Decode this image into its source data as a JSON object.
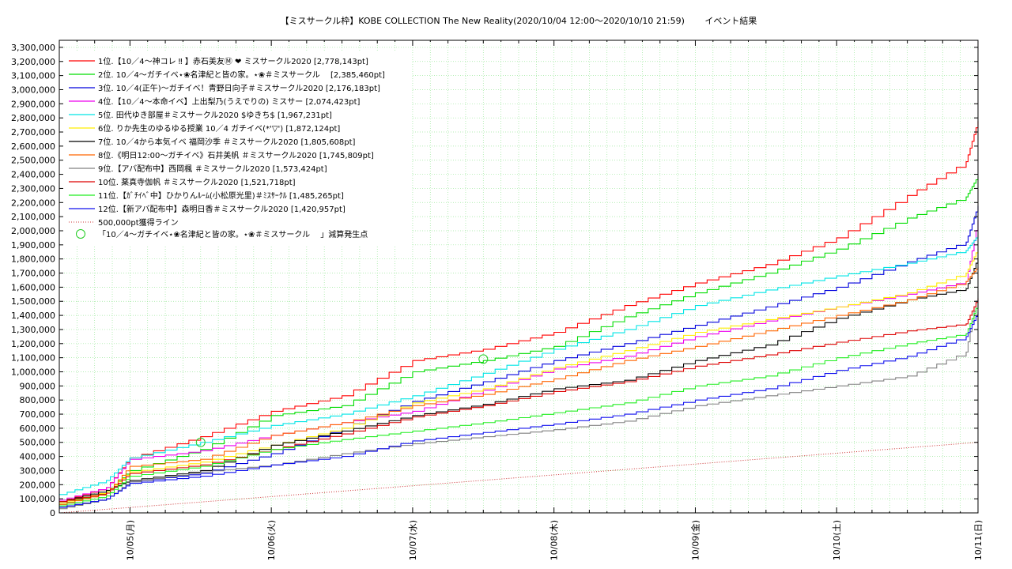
{
  "chart_data": {
    "type": "line",
    "title": "【ミスサークル枠】KOBE COLLECTION The New Reality(2020/10/04 12:00〜2020/10/10 21:59)　　 イベント結果",
    "xlabel": "",
    "ylabel": "",
    "x_ticks": [
      "10/05(月)",
      "10/06(火)",
      "10/07(水)",
      "10/08(木)",
      "10/09(金)",
      "10/10(土)",
      "10/11(日)"
    ],
    "xlim": [
      "2020-10-04 12:00",
      "2020-10-11 00:00"
    ],
    "ylim": [
      0,
      3350000
    ],
    "y_ticks": [
      "0",
      "100,000",
      "200,000",
      "300,000",
      "400,000",
      "500,000",
      "600,000",
      "700,000",
      "800,000",
      "900,000",
      "1,000,000",
      "1,100,000",
      "1,200,000",
      "1,300,000",
      "1,400,000",
      "1,500,000",
      "1,600,000",
      "1,700,000",
      "1,800,000",
      "1,900,000",
      "2,000,000",
      "2,100,000",
      "2,200,000",
      "2,300,000",
      "2,400,000",
      "2,500,000",
      "2,600,000",
      "2,700,000",
      "2,800,000",
      "2,900,000",
      "3,000,000",
      "3,100,000",
      "3,200,000",
      "3,300,000"
    ],
    "grid": true,
    "legend_position": "top-left",
    "series": [
      {
        "name": "1位.【10／4〜神コレ ‼ 】赤石美友Ⓜ ❤ ミスサークル2020 [2,778,143pt]",
        "color": "#ff0000",
        "x": [
          "10/04 12:00",
          "10/04 20:00",
          "10/05 00:00",
          "10/05 12:00",
          "10/06 00:00",
          "10/06 12:00",
          "10/07 00:00",
          "10/07 12:00",
          "10/08 00:00",
          "10/08 12:00",
          "10/09 00:00",
          "10/09 12:00",
          "10/10 00:00",
          "10/10 12:00",
          "10/10 21:59",
          "10/11 00:00"
        ],
        "y": [
          80000,
          180000,
          390000,
          540000,
          720000,
          830000,
          1080000,
          1160000,
          1280000,
          1470000,
          1630000,
          1760000,
          1950000,
          2250000,
          2490000,
          2778143
        ]
      },
      {
        "name": "2位. 10／4〜ガチイベ⋆❀名津紀と皆の家。⋆❀＃ミスサークル　 [2,385,460pt]",
        "color": "#00dd00",
        "x": [
          "10/04 12:00",
          "10/04 20:00",
          "10/05 00:00",
          "10/05 12:00",
          "10/06 00:00",
          "10/06 12:00",
          "10/07 00:00",
          "10/07 12:00",
          "10/08 00:00",
          "10/08 12:00",
          "10/09 00:00",
          "10/09 12:00",
          "10/10 00:00",
          "10/10 12:00",
          "10/10 21:59",
          "10/11 00:00"
        ],
        "y": [
          60000,
          150000,
          300000,
          450000,
          690000,
          760000,
          1000000,
          1080000,
          1180000,
          1390000,
          1560000,
          1700000,
          1870000,
          2090000,
          2240000,
          2385460
        ]
      },
      {
        "name": "3位. 10／4(正午)〜ガチイベ！青野日向子＃ミスサークル2020 [2,176,183pt]",
        "color": "#0000dd",
        "x": [
          "10/04 12:00",
          "10/04 20:00",
          "10/05 00:00",
          "10/05 12:00",
          "10/06 00:00",
          "10/06 12:00",
          "10/07 00:00",
          "10/07 12:00",
          "10/08 00:00",
          "10/08 12:00",
          "10/09 00:00",
          "10/09 12:00",
          "10/10 00:00",
          "10/10 12:00",
          "10/10 21:59",
          "10/11 00:00"
        ],
        "y": [
          40000,
          100000,
          220000,
          280000,
          420000,
          600000,
          790000,
          930000,
          1080000,
          1200000,
          1330000,
          1460000,
          1600000,
          1780000,
          1920000,
          2176183
        ]
      },
      {
        "name": "4位.【10／4〜本命イベ】上出梨乃(うえでりの) ミスサー [2,074,423pt]",
        "color": "#ee00ee",
        "x": [
          "10/04 12:00",
          "10/04 20:00",
          "10/05 00:00",
          "10/05 12:00",
          "10/06 00:00",
          "10/06 12:00",
          "10/07 00:00",
          "10/07 12:00",
          "10/08 00:00",
          "10/08 12:00",
          "10/09 00:00",
          "10/09 12:00",
          "10/10 00:00",
          "10/10 12:00",
          "10/10 21:59",
          "10/11 00:00"
        ],
        "y": [
          90000,
          180000,
          380000,
          440000,
          550000,
          640000,
          720000,
          870000,
          1020000,
          1110000,
          1250000,
          1360000,
          1460000,
          1550000,
          1640000,
          2074423
        ]
      },
      {
        "name": "5位. 田代ゆき部屋＃ミスサークル2020 $ゆきち$ [1,967,231pt]",
        "color": "#00e5e5",
        "x": [
          "10/04 12:00",
          "10/04 20:00",
          "10/05 00:00",
          "10/05 12:00",
          "10/06 00:00",
          "10/06 12:00",
          "10/07 00:00",
          "10/07 12:00",
          "10/08 00:00",
          "10/08 12:00",
          "10/09 00:00",
          "10/09 12:00",
          "10/10 00:00",
          "10/10 12:00",
          "10/10 21:59",
          "10/11 00:00"
        ],
        "y": [
          130000,
          230000,
          390000,
          500000,
          620000,
          700000,
          830000,
          990000,
          1160000,
          1300000,
          1470000,
          1580000,
          1680000,
          1770000,
          1860000,
          1967231
        ]
      },
      {
        "name": "6位. りか先生のゆるゆる授業 10／4 ガチイベ(*'▽') [1,872,124pt]",
        "color": "#ffee00",
        "x": [
          "10/04 12:00",
          "10/04 20:00",
          "10/05 00:00",
          "10/05 12:00",
          "10/06 00:00",
          "10/06 12:00",
          "10/07 00:00",
          "10/07 12:00",
          "10/08 00:00",
          "10/08 12:00",
          "10/09 00:00",
          "10/09 12:00",
          "10/10 00:00",
          "10/10 12:00",
          "10/10 21:59",
          "10/11 00:00"
        ],
        "y": [
          70000,
          150000,
          290000,
          360000,
          480000,
          600000,
          780000,
          880000,
          1030000,
          1150000,
          1280000,
          1370000,
          1460000,
          1560000,
          1700000,
          1872124
        ]
      },
      {
        "name": "7位. 10／4から本気イベ 福岡沙季 ＃ミスサークル2020 [1,805,608pt]",
        "color": "#000000",
        "x": [
          "10/04 12:00",
          "10/04 20:00",
          "10/05 00:00",
          "10/05 12:00",
          "10/06 00:00",
          "10/06 12:00",
          "10/07 00:00",
          "10/07 12:00",
          "10/08 00:00",
          "10/08 12:00",
          "10/09 00:00",
          "10/09 12:00",
          "10/10 00:00",
          "10/10 12:00",
          "10/10 21:59",
          "10/11 00:00"
        ],
        "y": [
          80000,
          160000,
          230000,
          300000,
          480000,
          580000,
          690000,
          770000,
          880000,
          940000,
          1080000,
          1190000,
          1380000,
          1510000,
          1590000,
          1805608
        ]
      },
      {
        "name": "8位.《明日12:00〜ガチイベ》石井美帆 ＃ミスサークル2020 [1,745,809pt]",
        "color": "#ff6600",
        "x": [
          "10/04 12:00",
          "10/04 20:00",
          "10/05 00:00",
          "10/05 12:00",
          "10/06 00:00",
          "10/06 12:00",
          "10/07 00:00",
          "10/07 12:00",
          "10/08 00:00",
          "10/08 12:00",
          "10/09 00:00",
          "10/09 12:00",
          "10/10 00:00",
          "10/10 12:00",
          "10/10 21:59",
          "10/11 00:00"
        ],
        "y": [
          60000,
          140000,
          330000,
          380000,
          550000,
          640000,
          760000,
          840000,
          950000,
          1080000,
          1180000,
          1290000,
          1400000,
          1510000,
          1640000,
          1745809
        ]
      },
      {
        "name": "9位.【アバ配布中】西岡楓 ＃ミスサークル2020 [1,573,424pt]",
        "color": "#808080",
        "x": [
          "10/04 12:00",
          "10/04 20:00",
          "10/05 00:00",
          "10/05 12:00",
          "10/06 00:00",
          "10/06 12:00",
          "10/07 00:00",
          "10/07 12:00",
          "10/08 00:00",
          "10/08 12:00",
          "10/09 00:00",
          "10/09 12:00",
          "10/10 00:00",
          "10/10 12:00",
          "10/10 21:59",
          "10/11 00:00"
        ],
        "y": [
          30000,
          100000,
          220000,
          290000,
          340000,
          420000,
          490000,
          540000,
          590000,
          650000,
          760000,
          830000,
          900000,
          970000,
          1140000,
          1573424
        ]
      },
      {
        "name": "10位. 薬真寺伽帆 ＃ミスサークル2020 [1,521,718pt]",
        "color": "#dd0000",
        "x": [
          "10/04 12:00",
          "10/04 20:00",
          "10/05 00:00",
          "10/05 12:00",
          "10/06 00:00",
          "10/06 12:00",
          "10/07 00:00",
          "10/07 12:00",
          "10/08 00:00",
          "10/08 12:00",
          "10/09 00:00",
          "10/09 12:00",
          "10/10 00:00",
          "10/10 12:00",
          "10/10 21:59",
          "10/11 00:00"
        ],
        "y": [
          80000,
          140000,
          280000,
          340000,
          450000,
          560000,
          680000,
          760000,
          860000,
          930000,
          1040000,
          1120000,
          1210000,
          1290000,
          1340000,
          1521718
        ]
      },
      {
        "name": "11位.【ｶﾞﾁｲﾍﾞ中】ひかりんﾙｰﾑ(小松原光里)＃ﾐｽｻｰｸﾙ [1,485,265pt]",
        "color": "#22ee22",
        "x": [
          "10/04 12:00",
          "10/04 20:00",
          "10/05 00:00",
          "10/05 12:00",
          "10/06 00:00",
          "10/06 12:00",
          "10/07 00:00",
          "10/07 12:00",
          "10/08 00:00",
          "10/08 12:00",
          "10/09 00:00",
          "10/09 12:00",
          "10/10 00:00",
          "10/10 12:00",
          "10/10 21:59",
          "10/11 00:00"
        ],
        "y": [
          50000,
          120000,
          260000,
          330000,
          450000,
          520000,
          580000,
          640000,
          710000,
          780000,
          900000,
          970000,
          1100000,
          1200000,
          1270000,
          1485265
        ]
      },
      {
        "name": "12位.【新アバ配布中】森明日香＃ミスサークル2020 [1,420,957pt]",
        "color": "#1010ee",
        "x": [
          "10/04 12:00",
          "10/04 20:00",
          "10/05 00:00",
          "10/05 12:00",
          "10/06 00:00",
          "10/06 12:00",
          "10/07 00:00",
          "10/07 12:00",
          "10/08 00:00",
          "10/08 12:00",
          "10/09 00:00",
          "10/09 12:00",
          "10/10 00:00",
          "10/10 12:00",
          "10/10 21:59",
          "10/11 00:00"
        ],
        "y": [
          40000,
          100000,
          210000,
          260000,
          340000,
          400000,
          510000,
          570000,
          630000,
          700000,
          800000,
          880000,
          1010000,
          1110000,
          1250000,
          1420957
        ]
      }
    ],
    "reference_line": {
      "name": "500,000pt獲得ライン",
      "color": "#cc3333",
      "x": [
        "10/04 12:00",
        "10/11 00:00"
      ],
      "y": [
        0,
        500000
      ]
    },
    "markers": {
      "name": "「10／4〜ガチイベ⋆❀名津紀と皆の家。⋆❀＃ミスサークル　 」減算発生点",
      "color": "#22cc22",
      "x": [
        "10/05 12:00",
        "10/07 12:00"
      ],
      "y": [
        500000,
        1090000
      ]
    }
  }
}
